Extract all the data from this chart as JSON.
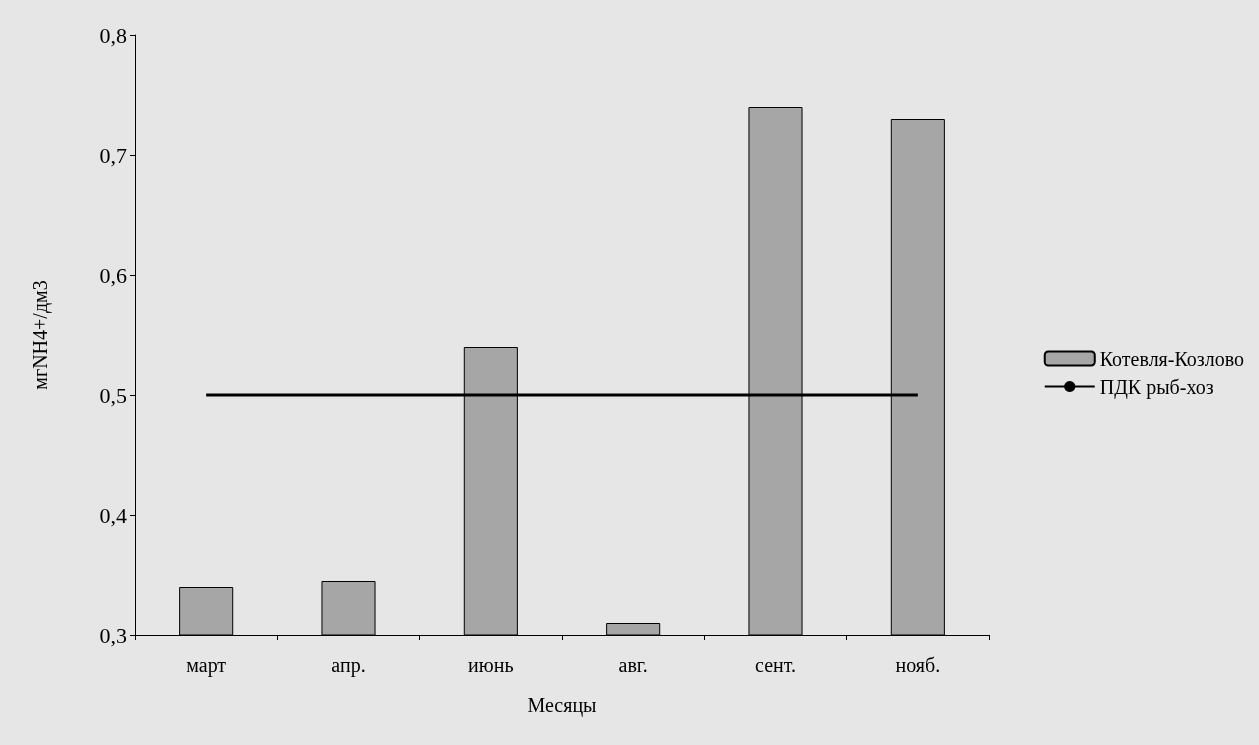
{
  "chart_data": {
    "type": "bar",
    "xlabel": "Месяцы",
    "ylabel": "мгNH4+/дм3",
    "categories": [
      "март",
      "апр.",
      "июнь",
      "авг.",
      "сент.",
      "нояб."
    ],
    "series": [
      {
        "name": "Котевля-Козлово",
        "color": "#a6a6a6",
        "values": [
          0.34,
          0.345,
          0.54,
          0.31,
          0.74,
          0.73
        ]
      },
      {
        "name": "ПДК рыб-хоз",
        "type": "line",
        "color": "#000000",
        "values": [
          0.5,
          0.5,
          0.5,
          0.5,
          0.5,
          0.5
        ]
      }
    ],
    "ylim": [
      0.3,
      0.8
    ],
    "yticks": [
      {
        "value": 0.3,
        "label": "0,3"
      },
      {
        "value": 0.4,
        "label": "0,4"
      },
      {
        "value": 0.5,
        "label": "0,5"
      },
      {
        "value": 0.6,
        "label": "0,6"
      },
      {
        "value": 0.7,
        "label": "0,7"
      },
      {
        "value": 0.8,
        "label": "0,8"
      }
    ],
    "grid": false,
    "legend": "right",
    "marker": "none"
  }
}
